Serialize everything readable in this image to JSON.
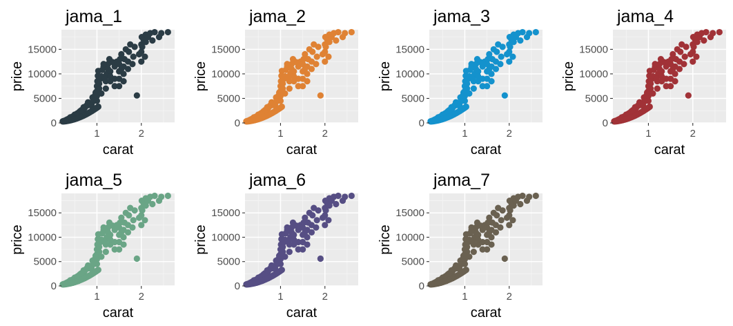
{
  "chart_data": [
    {
      "type": "scatter",
      "title": "jama_1",
      "color": "#2b3c45",
      "xlabel": "carat",
      "ylabel": "price",
      "xlim": [
        0.2,
        2.75
      ],
      "ylim": [
        0,
        19000
      ],
      "x_ticks": [
        1,
        2
      ],
      "y_ticks": [
        0,
        5000,
        10000,
        15000
      ],
      "y_tick_labels": [
        "0",
        "5000",
        "10000",
        "15000"
      ],
      "grid": true
    },
    {
      "type": "scatter",
      "title": "jama_2",
      "color": "#df8234",
      "xlabel": "carat",
      "ylabel": "price",
      "xlim": [
        0.2,
        2.75
      ],
      "ylim": [
        0,
        19000
      ],
      "x_ticks": [
        1,
        2
      ],
      "y_ticks": [
        0,
        5000,
        10000,
        15000
      ],
      "y_tick_labels": [
        "0",
        "5000",
        "10000",
        "15000"
      ],
      "grid": true
    },
    {
      "type": "scatter",
      "title": "jama_3",
      "color": "#1492cd",
      "xlabel": "carat",
      "ylabel": "price",
      "xlim": [
        0.2,
        2.75
      ],
      "ylim": [
        0,
        19000
      ],
      "x_ticks": [
        1,
        2
      ],
      "y_ticks": [
        0,
        5000,
        10000,
        15000
      ],
      "y_tick_labels": [
        "0",
        "5000",
        "10000",
        "15000"
      ],
      "grid": true
    },
    {
      "type": "scatter",
      "title": "jama_4",
      "color": "#a13237",
      "xlabel": "carat",
      "ylabel": "price",
      "xlim": [
        0.2,
        2.75
      ],
      "ylim": [
        0,
        19000
      ],
      "x_ticks": [
        1,
        2
      ],
      "y_ticks": [
        0,
        5000,
        10000,
        15000
      ],
      "y_tick_labels": [
        "0",
        "5000",
        "10000",
        "15000"
      ],
      "grid": true
    },
    {
      "type": "scatter",
      "title": "jama_5",
      "color": "#6aa586",
      "xlabel": "carat",
      "ylabel": "price",
      "xlim": [
        0.2,
        2.75
      ],
      "ylim": [
        0,
        19000
      ],
      "x_ticks": [
        1,
        2
      ],
      "y_ticks": [
        0,
        5000,
        10000,
        15000
      ],
      "y_tick_labels": [
        "0",
        "5000",
        "10000",
        "15000"
      ],
      "grid": true
    },
    {
      "type": "scatter",
      "title": "jama_6",
      "color": "#564e84",
      "xlabel": "carat",
      "ylabel": "price",
      "xlim": [
        0.2,
        2.75
      ],
      "ylim": [
        0,
        19000
      ],
      "x_ticks": [
        1,
        2
      ],
      "y_ticks": [
        0,
        5000,
        10000,
        15000
      ],
      "y_tick_labels": [
        "0",
        "5000",
        "10000",
        "15000"
      ],
      "grid": true
    },
    {
      "type": "scatter",
      "title": "jama_7",
      "color": "#6a6151",
      "xlabel": "carat",
      "ylabel": "price",
      "xlim": [
        0.2,
        2.75
      ],
      "ylim": [
        0,
        19000
      ],
      "x_ticks": [
        1,
        2
      ],
      "y_ticks": [
        0,
        5000,
        10000,
        15000
      ],
      "y_tick_labels": [
        "0",
        "5000",
        "10000",
        "15000"
      ],
      "grid": true
    }
  ],
  "points": [
    [
      0.23,
      330
    ],
    [
      0.25,
      380
    ],
    [
      0.26,
      420
    ],
    [
      0.28,
      460
    ],
    [
      0.3,
      500
    ],
    [
      0.3,
      560
    ],
    [
      0.31,
      600
    ],
    [
      0.32,
      650
    ],
    [
      0.33,
      700
    ],
    [
      0.35,
      780
    ],
    [
      0.36,
      850
    ],
    [
      0.38,
      900
    ],
    [
      0.4,
      1000
    ],
    [
      0.4,
      1150
    ],
    [
      0.42,
      1100
    ],
    [
      0.45,
      1300
    ],
    [
      0.5,
      1450
    ],
    [
      0.5,
      1700
    ],
    [
      0.52,
      1650
    ],
    [
      0.55,
      1900
    ],
    [
      0.57,
      2000
    ],
    [
      0.6,
      2200
    ],
    [
      0.62,
      2400
    ],
    [
      0.65,
      2600
    ],
    [
      0.7,
      2800
    ],
    [
      0.7,
      3200
    ],
    [
      0.72,
      3000
    ],
    [
      0.75,
      3400
    ],
    [
      0.78,
      3700
    ],
    [
      0.8,
      3600
    ],
    [
      0.8,
      4200
    ],
    [
      0.85,
      4000
    ],
    [
      0.9,
      4300
    ],
    [
      0.9,
      5200
    ],
    [
      0.92,
      4800
    ],
    [
      0.95,
      5500
    ],
    [
      1.0,
      4500
    ],
    [
      1.0,
      5500
    ],
    [
      1.0,
      6500
    ],
    [
      1.0,
      7500
    ],
    [
      1.01,
      8500
    ],
    [
      1.02,
      9600
    ],
    [
      1.03,
      10600
    ],
    [
      1.05,
      7000
    ],
    [
      1.05,
      8000
    ],
    [
      1.08,
      9000
    ],
    [
      1.1,
      6000
    ],
    [
      1.1,
      9500
    ],
    [
      1.12,
      10800
    ],
    [
      1.15,
      11500
    ],
    [
      1.2,
      7000
    ],
    [
      1.2,
      8500
    ],
    [
      1.22,
      10000
    ],
    [
      1.25,
      11000
    ],
    [
      1.25,
      12000
    ],
    [
      1.3,
      8500
    ],
    [
      1.3,
      10500
    ],
    [
      1.35,
      12400
    ],
    [
      1.4,
      9000
    ],
    [
      1.4,
      11500
    ],
    [
      1.45,
      12500
    ],
    [
      1.5,
      7500
    ],
    [
      1.5,
      9000
    ],
    [
      1.5,
      10500
    ],
    [
      1.5,
      12000
    ],
    [
      1.52,
      13000
    ],
    [
      1.55,
      14000
    ],
    [
      1.6,
      10000
    ],
    [
      1.6,
      11500
    ],
    [
      1.62,
      13000
    ],
    [
      1.65,
      15000
    ],
    [
      1.7,
      11000
    ],
    [
      1.7,
      12500
    ],
    [
      1.72,
      14500
    ],
    [
      1.75,
      16000
    ],
    [
      1.8,
      12000
    ],
    [
      1.82,
      13500
    ],
    [
      1.9,
      5600
    ],
    [
      1.95,
      14000
    ],
    [
      2.0,
      12500
    ],
    [
      2.0,
      14500
    ],
    [
      2.0,
      16000
    ],
    [
      2.01,
      17500
    ],
    [
      2.02,
      15500
    ],
    [
      2.05,
      17000
    ],
    [
      2.1,
      16500
    ],
    [
      2.1,
      18000
    ],
    [
      2.15,
      17500
    ],
    [
      2.2,
      18300
    ],
    [
      2.25,
      16800
    ],
    [
      2.3,
      18500
    ],
    [
      2.4,
      17500
    ],
    [
      2.45,
      18300
    ],
    [
      2.6,
      18500
    ],
    [
      1.15,
      12000
    ],
    [
      1.28,
      13000
    ],
    [
      0.97,
      6200
    ],
    [
      1.18,
      9000
    ],
    [
      0.88,
      3500
    ],
    [
      0.66,
      2100
    ],
    [
      0.55,
      1500
    ],
    [
      0.34,
      720
    ],
    [
      1.6,
      8500
    ],
    [
      1.4,
      7500
    ],
    [
      1.85,
      15500
    ],
    [
      2.08,
      13500
    ],
    [
      1.55,
      11000
    ],
    [
      1.3,
      9500
    ]
  ]
}
